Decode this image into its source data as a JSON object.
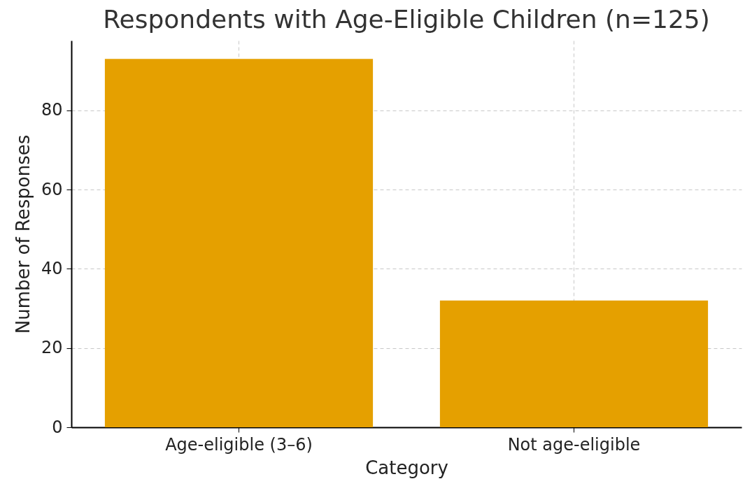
{
  "chart_data": {
    "type": "bar",
    "title": "Respondents with Age-Eligible Children (n=125)",
    "xlabel": "Category",
    "ylabel": "Number of Responses",
    "categories": [
      "Age-eligible (3–6)",
      "Not age-eligible"
    ],
    "values": [
      93,
      32
    ],
    "color": "#e5a000",
    "ylim": [
      0,
      97.65
    ],
    "yticks": [
      0,
      20,
      40,
      60,
      80
    ],
    "grid": true
  }
}
